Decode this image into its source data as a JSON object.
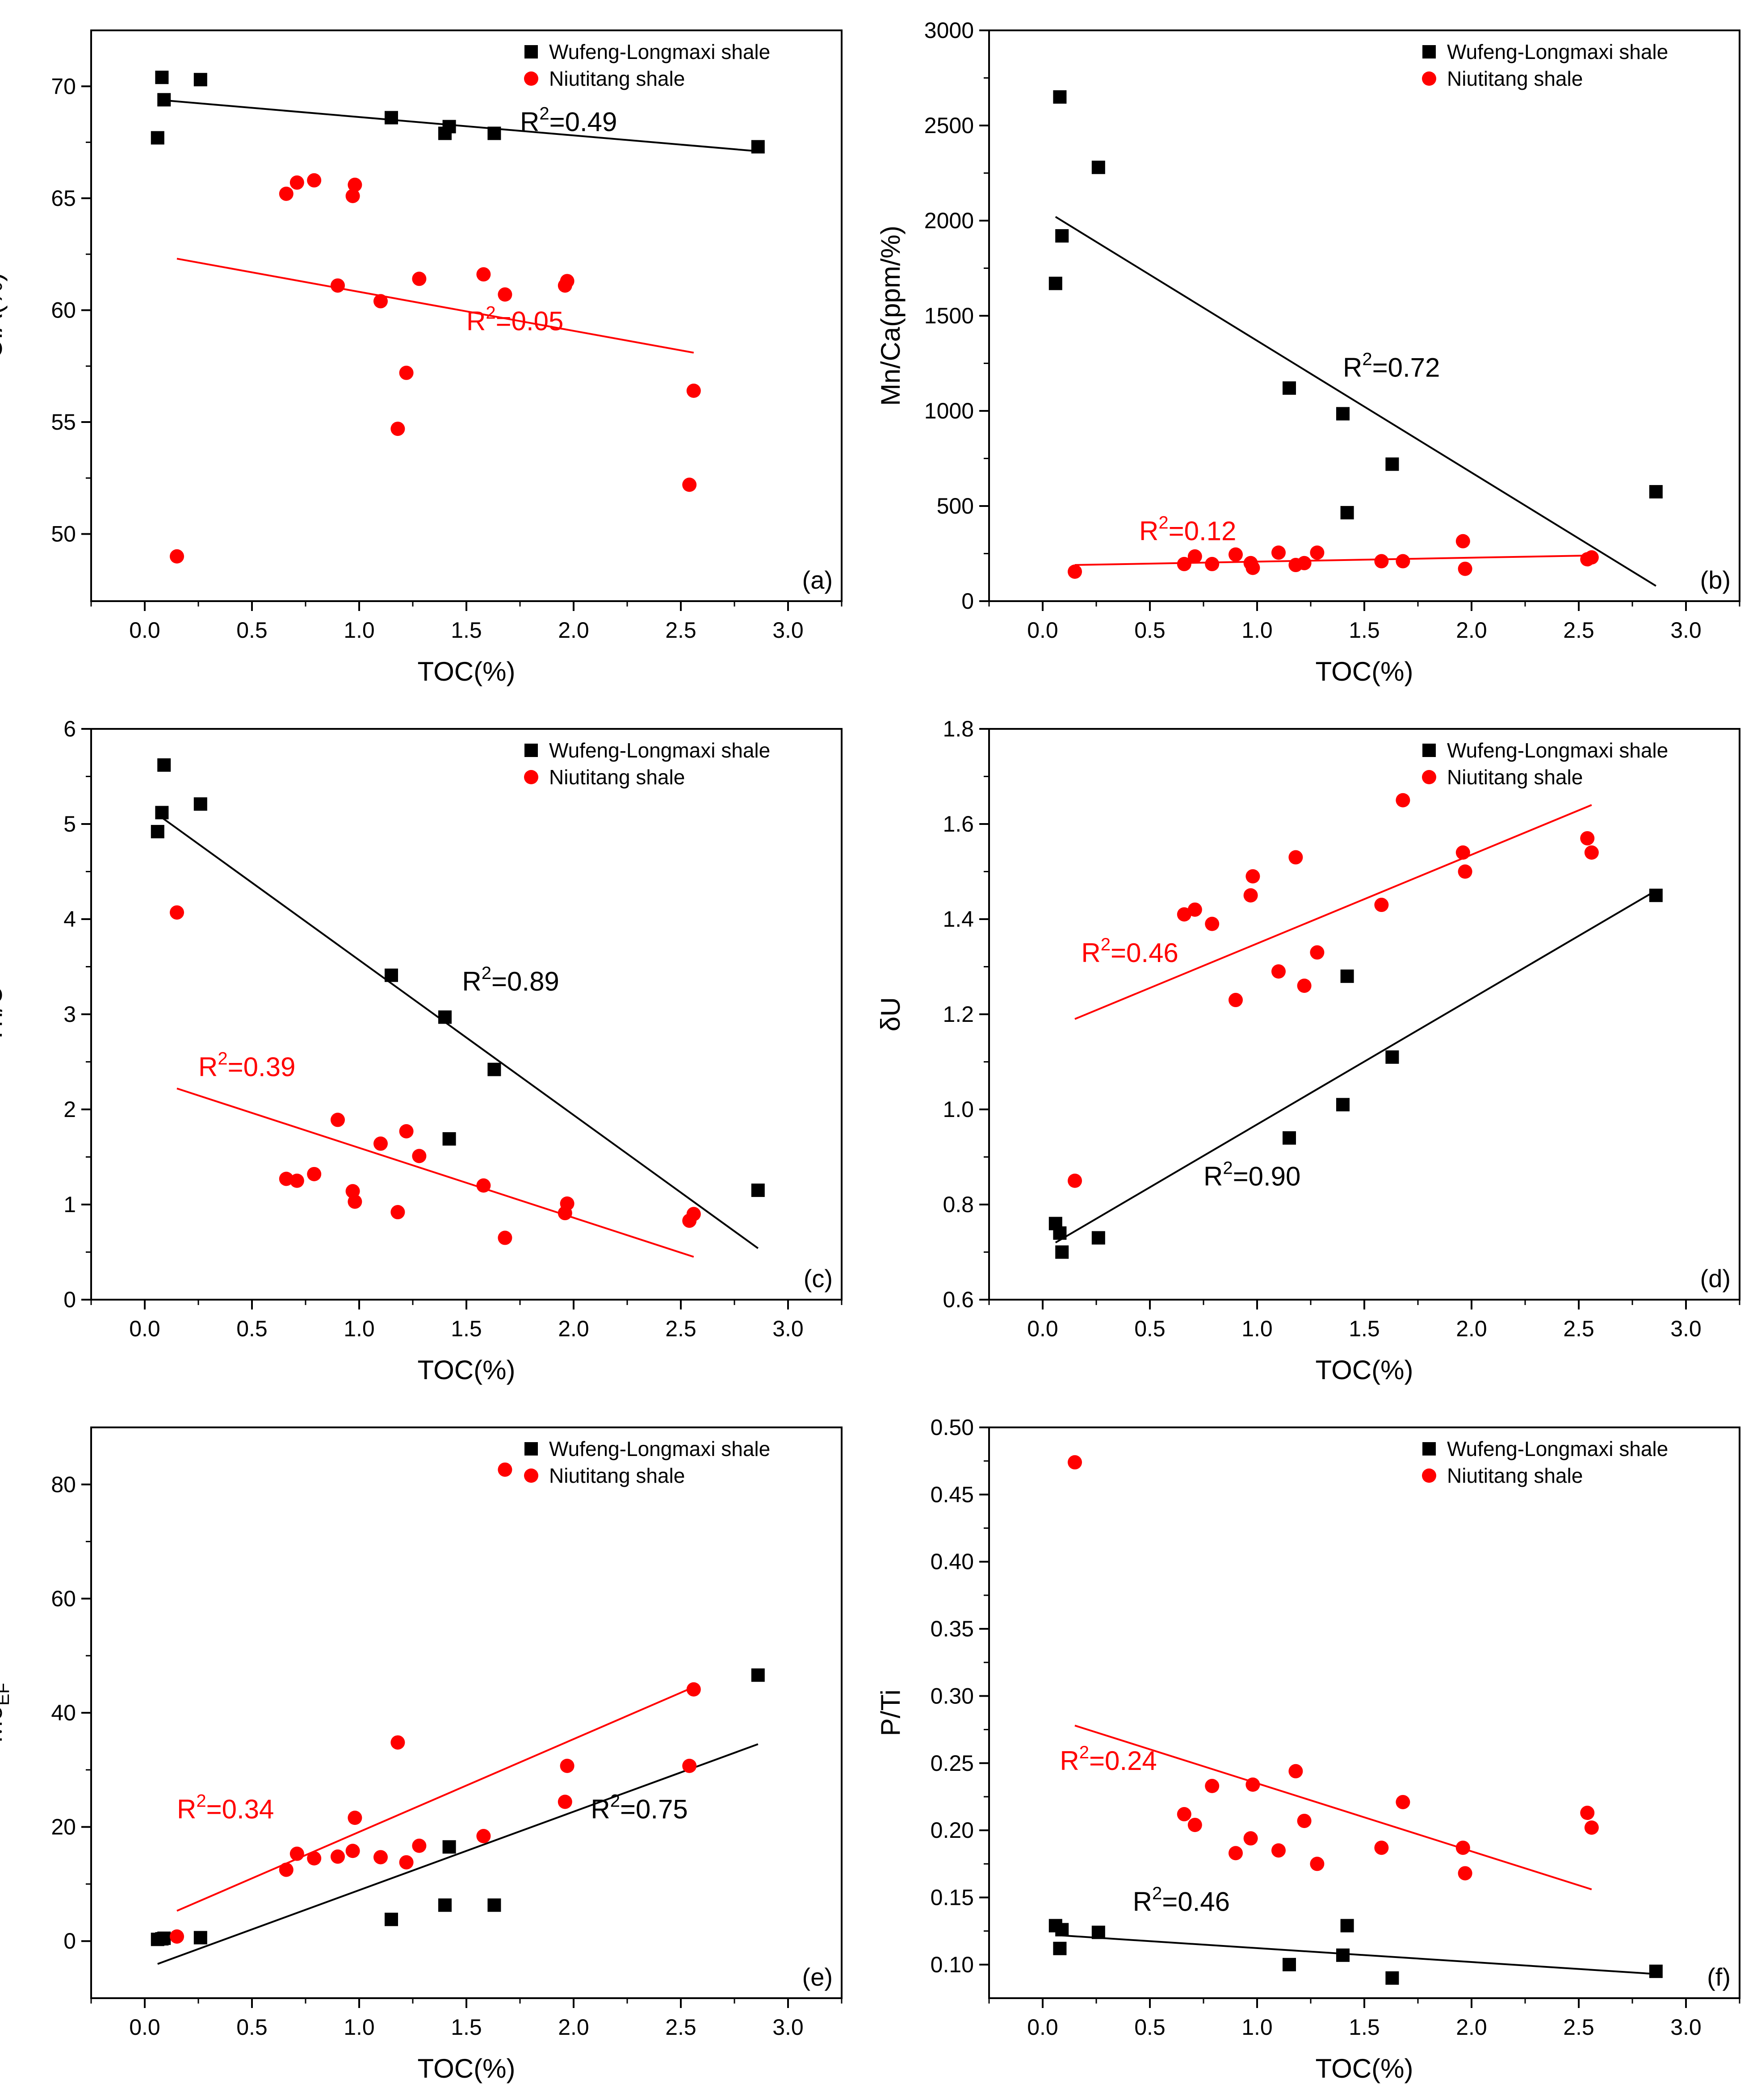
{
  "colors": {
    "wufeng": "#000000",
    "niutitang": "#ff0000",
    "axis": "#000000"
  },
  "chart_data": [
    {
      "panel": "(a)",
      "type": "scatter",
      "xlabel": "TOC(%)",
      "ylabel": "CIA(%)",
      "xlim": [
        -0.25,
        3.25
      ],
      "ylim": [
        47,
        72.5
      ],
      "xticks": [
        "0.0",
        "0.5",
        "1.0",
        "1.5",
        "2.0",
        "2.5",
        "3.0"
      ],
      "yticks": [
        "50",
        "55",
        "60",
        "65",
        "70"
      ],
      "legend": "top-right",
      "series": [
        {
          "name": "Wufeng-Longmaxi shale",
          "marker": "square",
          "color": "#000000",
          "points": [
            [
              0.06,
              67.7
            ],
            [
              0.08,
              70.4
            ],
            [
              0.09,
              69.4
            ],
            [
              0.26,
              70.3
            ],
            [
              1.15,
              68.6
            ],
            [
              1.4,
              67.9
            ],
            [
              1.42,
              68.2
            ],
            [
              1.63,
              67.9
            ],
            [
              2.86,
              67.3
            ]
          ],
          "fit": [
            [
              0.06,
              69.4
            ],
            [
              2.86,
              67.1
            ]
          ],
          "r2": "=0.49"
        },
        {
          "name": "Niutitang shale",
          "marker": "circle",
          "color": "#ff0000",
          "points": [
            [
              0.15,
              49.0
            ],
            [
              0.66,
              65.2
            ],
            [
              0.71,
              65.7
            ],
            [
              0.79,
              65.8
            ],
            [
              0.97,
              65.1
            ],
            [
              0.98,
              65.6
            ],
            [
              0.9,
              61.1
            ],
            [
              1.1,
              60.4
            ],
            [
              1.18,
              54.7
            ],
            [
              1.22,
              57.2
            ],
            [
              1.28,
              61.4
            ],
            [
              1.58,
              61.6
            ],
            [
              1.68,
              60.7
            ],
            [
              1.96,
              61.1
            ],
            [
              1.97,
              61.3
            ],
            [
              2.54,
              52.2
            ],
            [
              2.56,
              56.4
            ]
          ],
          "fit": [
            [
              0.15,
              62.3
            ],
            [
              2.56,
              58.1
            ]
          ],
          "r2": "=0.05"
        }
      ]
    },
    {
      "panel": "(b)",
      "type": "scatter",
      "xlabel": "TOC(%)",
      "ylabel": "Mn/Ca(ppm/%)",
      "xlim": [
        -0.25,
        3.25
      ],
      "ylim": [
        0,
        3000
      ],
      "xticks": [
        "0.0",
        "0.5",
        "1.0",
        "1.5",
        "2.0",
        "2.5",
        "3.0"
      ],
      "yticks": [
        "0",
        "500",
        "1000",
        "1500",
        "2000",
        "2500",
        "3000"
      ],
      "legend": "top-right",
      "series": [
        {
          "name": "Wufeng-Longmaxi shale",
          "marker": "square",
          "color": "#000000",
          "points": [
            [
              0.06,
              1670
            ],
            [
              0.08,
              2650
            ],
            [
              0.09,
              1920
            ],
            [
              0.26,
              2280
            ],
            [
              1.15,
              1120
            ],
            [
              1.4,
              985
            ],
            [
              1.42,
              465
            ],
            [
              1.63,
              720
            ],
            [
              2.86,
              575
            ]
          ],
          "fit": [
            [
              0.06,
              2020
            ],
            [
              2.86,
              80
            ]
          ],
          "r2": "=0.72"
        },
        {
          "name": "Niutitang shale",
          "marker": "circle",
          "color": "#ff0000",
          "points": [
            [
              0.15,
              155
            ],
            [
              0.66,
              195
            ],
            [
              0.71,
              235
            ],
            [
              0.79,
              195
            ],
            [
              0.9,
              245
            ],
            [
              0.97,
              200
            ],
            [
              0.98,
              175
            ],
            [
              1.1,
              255
            ],
            [
              1.18,
              190
            ],
            [
              1.22,
              200
            ],
            [
              1.28,
              255
            ],
            [
              1.58,
              210
            ],
            [
              1.68,
              210
            ],
            [
              1.96,
              315
            ],
            [
              1.97,
              170
            ],
            [
              2.54,
              220
            ],
            [
              2.56,
              230
            ]
          ],
          "fit": [
            [
              0.15,
              190
            ],
            [
              2.56,
              240
            ]
          ],
          "r2": "=0.12"
        }
      ]
    },
    {
      "panel": "(c)",
      "type": "scatter",
      "xlabel": "TOC(%)",
      "ylabel": "Th/U",
      "xlim": [
        -0.25,
        3.25
      ],
      "ylim": [
        0,
        6
      ],
      "xticks": [
        "0.0",
        "0.5",
        "1.0",
        "1.5",
        "2.0",
        "2.5",
        "3.0"
      ],
      "yticks": [
        "0",
        "1",
        "2",
        "3",
        "4",
        "5",
        "6"
      ],
      "legend": "top-right",
      "series": [
        {
          "name": "Wufeng-Longmaxi shale",
          "marker": "square",
          "color": "#000000",
          "points": [
            [
              0.06,
              4.92
            ],
            [
              0.08,
              5.12
            ],
            [
              0.09,
              5.62
            ],
            [
              0.26,
              5.21
            ],
            [
              1.15,
              3.41
            ],
            [
              1.4,
              2.97
            ],
            [
              1.42,
              1.69
            ],
            [
              1.63,
              2.42
            ],
            [
              2.86,
              1.15
            ]
          ],
          "fit": [
            [
              0.06,
              5.1
            ],
            [
              2.86,
              0.54
            ]
          ],
          "r2": "=0.89"
        },
        {
          "name": "Niutitang shale",
          "marker": "circle",
          "color": "#ff0000",
          "points": [
            [
              0.15,
              4.07
            ],
            [
              0.66,
              1.27
            ],
            [
              0.71,
              1.25
            ],
            [
              0.79,
              1.32
            ],
            [
              0.9,
              1.89
            ],
            [
              0.97,
              1.14
            ],
            [
              0.98,
              1.03
            ],
            [
              1.1,
              1.64
            ],
            [
              1.18,
              0.92
            ],
            [
              1.22,
              1.77
            ],
            [
              1.28,
              1.51
            ],
            [
              1.58,
              1.2
            ],
            [
              1.68,
              0.65
            ],
            [
              1.96,
              0.91
            ],
            [
              1.97,
              1.01
            ],
            [
              2.54,
              0.83
            ],
            [
              2.56,
              0.9
            ]
          ],
          "fit": [
            [
              0.15,
              2.22
            ],
            [
              2.56,
              0.45
            ]
          ],
          "r2": "=0.39"
        }
      ]
    },
    {
      "panel": "(d)",
      "type": "scatter",
      "xlabel": "TOC(%)",
      "ylabel": "δU",
      "xlim": [
        -0.25,
        3.25
      ],
      "ylim": [
        0.6,
        1.8
      ],
      "xticks": [
        "0.0",
        "0.5",
        "1.0",
        "1.5",
        "2.0",
        "2.5",
        "3.0"
      ],
      "yticks": [
        "0.6",
        "0.8",
        "1.0",
        "1.2",
        "1.4",
        "1.6",
        "1.8"
      ],
      "legend": "top-right",
      "series": [
        {
          "name": "Wufeng-Longmaxi shale",
          "marker": "square",
          "color": "#000000",
          "points": [
            [
              0.06,
              0.76
            ],
            [
              0.08,
              0.74
            ],
            [
              0.09,
              0.7
            ],
            [
              0.26,
              0.73
            ],
            [
              1.15,
              0.94
            ],
            [
              1.4,
              1.01
            ],
            [
              1.42,
              1.28
            ],
            [
              1.63,
              1.11
            ],
            [
              2.86,
              1.45
            ]
          ],
          "fit": [
            [
              0.06,
              0.72
            ],
            [
              2.86,
              1.46
            ]
          ],
          "r2": "=0.90"
        },
        {
          "name": "Niutitang shale",
          "marker": "circle",
          "color": "#ff0000",
          "points": [
            [
              0.15,
              0.85
            ],
            [
              0.66,
              1.41
            ],
            [
              0.71,
              1.42
            ],
            [
              0.79,
              1.39
            ],
            [
              0.9,
              1.23
            ],
            [
              0.97,
              1.45
            ],
            [
              0.98,
              1.49
            ],
            [
              1.1,
              1.29
            ],
            [
              1.18,
              1.53
            ],
            [
              1.22,
              1.26
            ],
            [
              1.28,
              1.33
            ],
            [
              1.58,
              1.43
            ],
            [
              1.68,
              1.65
            ],
            [
              1.96,
              1.54
            ],
            [
              1.97,
              1.5
            ],
            [
              2.54,
              1.57
            ],
            [
              2.56,
              1.54
            ]
          ],
          "fit": [
            [
              0.15,
              1.19
            ],
            [
              2.56,
              1.64
            ]
          ],
          "r2": "=0.46"
        }
      ]
    },
    {
      "panel": "(e)",
      "type": "scatter",
      "xlabel": "TOC(%)",
      "ylabel": "Mo",
      "ylabel_sub": "EF",
      "xlim": [
        -0.25,
        3.25
      ],
      "ylim": [
        -10,
        90
      ],
      "xticks": [
        "0.0",
        "0.5",
        "1.0",
        "1.5",
        "2.0",
        "2.5",
        "3.0"
      ],
      "yticks": [
        "0",
        "20",
        "40",
        "60",
        "80"
      ],
      "legend": "top-right",
      "series": [
        {
          "name": "Wufeng-Longmaxi shale",
          "marker": "square",
          "color": "#000000",
          "points": [
            [
              0.06,
              0.3
            ],
            [
              0.08,
              0.4
            ],
            [
              0.09,
              0.5
            ],
            [
              0.26,
              0.6
            ],
            [
              1.15,
              3.8
            ],
            [
              1.4,
              6.3
            ],
            [
              1.42,
              16.5
            ],
            [
              1.63,
              6.3
            ],
            [
              2.86,
              46.6
            ]
          ],
          "fit": [
            [
              0.06,
              -4.0
            ],
            [
              2.86,
              34.5
            ]
          ],
          "r2": "=0.75"
        },
        {
          "name": "Niutitang shale",
          "marker": "circle",
          "color": "#ff0000",
          "points": [
            [
              0.15,
              0.8
            ],
            [
              0.66,
              12.5
            ],
            [
              0.71,
              15.3
            ],
            [
              0.79,
              14.5
            ],
            [
              0.9,
              14.8
            ],
            [
              0.97,
              15.8
            ],
            [
              0.98,
              21.6
            ],
            [
              1.1,
              14.7
            ],
            [
              1.18,
              34.8
            ],
            [
              1.22,
              13.8
            ],
            [
              1.28,
              16.7
            ],
            [
              1.58,
              18.4
            ],
            [
              1.68,
              82.6
            ],
            [
              1.96,
              24.4
            ],
            [
              1.97,
              30.7
            ],
            [
              2.54,
              30.7
            ],
            [
              2.56,
              44.1
            ]
          ],
          "fit": [
            [
              0.15,
              5.3
            ],
            [
              2.56,
              44.5
            ]
          ],
          "r2": "=0.34"
        }
      ]
    },
    {
      "panel": "(f)",
      "type": "scatter",
      "xlabel": "TOC(%)",
      "ylabel": "P/Ti",
      "xlim": [
        -0.25,
        3.25
      ],
      "ylim": [
        0.075,
        0.5
      ],
      "xticks": [
        "0.0",
        "0.5",
        "1.0",
        "1.5",
        "2.0",
        "2.5",
        "3.0"
      ],
      "yticks": [
        "0.10",
        "0.15",
        "0.20",
        "0.25",
        "0.30",
        "0.35",
        "0.40",
        "0.45",
        "0.50"
      ],
      "legend": "top-right",
      "series": [
        {
          "name": "Wufeng-Longmaxi shale",
          "marker": "square",
          "color": "#000000",
          "points": [
            [
              0.06,
              0.129
            ],
            [
              0.08,
              0.112
            ],
            [
              0.09,
              0.126
            ],
            [
              0.26,
              0.124
            ],
            [
              1.15,
              0.1
            ],
            [
              1.4,
              0.107
            ],
            [
              1.42,
              0.129
            ],
            [
              1.63,
              0.09
            ],
            [
              2.86,
              0.095
            ]
          ],
          "fit": [
            [
              0.06,
              0.122
            ],
            [
              2.86,
              0.093
            ]
          ],
          "r2": "=0.46"
        },
        {
          "name": "Niutitang shale",
          "marker": "circle",
          "color": "#ff0000",
          "points": [
            [
              0.15,
              0.474
            ],
            [
              0.66,
              0.212
            ],
            [
              0.71,
              0.204
            ],
            [
              0.79,
              0.233
            ],
            [
              0.9,
              0.183
            ],
            [
              0.97,
              0.194
            ],
            [
              0.98,
              0.234
            ],
            [
              1.1,
              0.185
            ],
            [
              1.18,
              0.244
            ],
            [
              1.22,
              0.207
            ],
            [
              1.28,
              0.175
            ],
            [
              1.58,
              0.187
            ],
            [
              1.68,
              0.221
            ],
            [
              1.96,
              0.187
            ],
            [
              1.97,
              0.168
            ],
            [
              2.54,
              0.213
            ],
            [
              2.56,
              0.202
            ]
          ],
          "fit": [
            [
              0.15,
              0.278
            ],
            [
              2.56,
              0.156
            ]
          ],
          "r2": "=0.24"
        }
      ]
    }
  ]
}
